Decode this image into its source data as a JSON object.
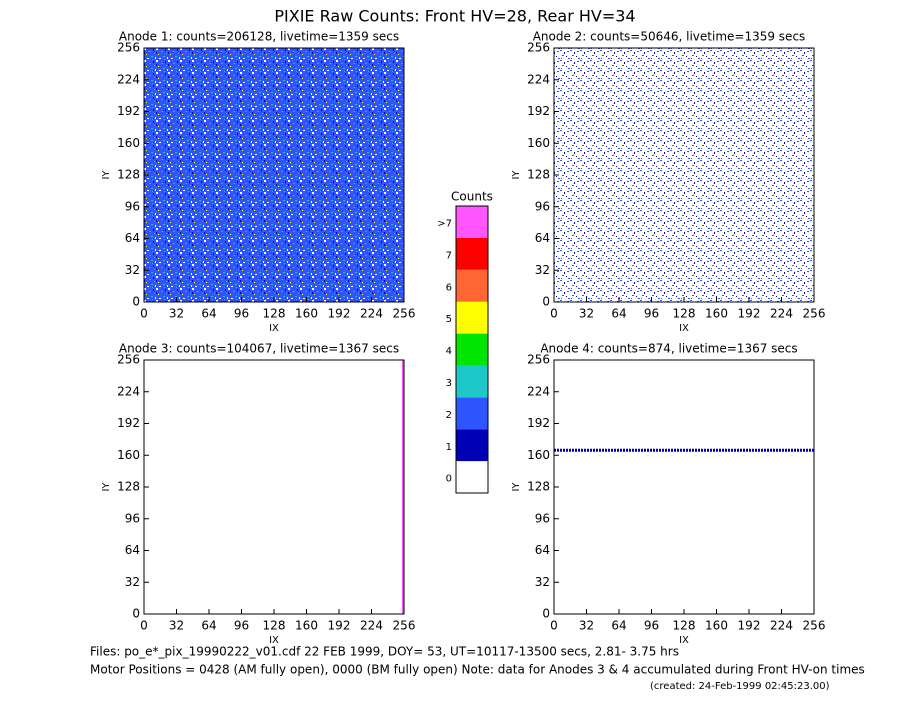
{
  "title": "PIXIE Raw Counts:  Front HV=28, Rear HV=34",
  "chart_data": [
    {
      "type": "heatmap",
      "title": "Anode 1: counts=206128, livetime=1359 secs",
      "xlabel": "IX",
      "ylabel": "IY",
      "xlim": [
        0,
        256
      ],
      "ylim": [
        0,
        256
      ],
      "xticks": [
        0,
        32,
        64,
        96,
        128,
        160,
        192,
        224,
        256
      ],
      "yticks": [
        0,
        32,
        64,
        96,
        128,
        160,
        192,
        224,
        256
      ],
      "texture": "dense"
    },
    {
      "type": "heatmap",
      "title": "Anode 2: counts=50646, livetime=1359 secs",
      "xlabel": "IX",
      "ylabel": "IY",
      "xlim": [
        0,
        256
      ],
      "ylim": [
        0,
        256
      ],
      "xticks": [
        0,
        32,
        64,
        96,
        128,
        160,
        192,
        224,
        256
      ],
      "yticks": [
        0,
        32,
        64,
        96,
        128,
        160,
        192,
        224,
        256
      ],
      "texture": "sparse"
    },
    {
      "type": "heatmap",
      "title": "Anode 3: counts=104067, livetime=1367 secs",
      "xlabel": "IX",
      "ylabel": "IY",
      "xlim": [
        0,
        256
      ],
      "ylim": [
        0,
        256
      ],
      "xticks": [
        0,
        32,
        64,
        96,
        128,
        160,
        192,
        224,
        256
      ],
      "yticks": [
        0,
        32,
        64,
        96,
        128,
        160,
        192,
        224,
        256
      ],
      "line_x": 255
    },
    {
      "type": "heatmap",
      "title": "Anode 4: counts=874, livetime=1367 secs",
      "xlabel": "IX",
      "ylabel": "IY",
      "xlim": [
        0,
        256
      ],
      "ylim": [
        0,
        256
      ],
      "xticks": [
        0,
        32,
        64,
        96,
        128,
        160,
        192,
        224,
        256
      ],
      "yticks": [
        0,
        32,
        64,
        96,
        128,
        160,
        192,
        224,
        256
      ],
      "line_y": 165
    }
  ],
  "colorbar": {
    "title": "Counts",
    "levels": [
      {
        "label": "0",
        "color": "#ffffff"
      },
      {
        "label": "1",
        "color": "#0000b4"
      },
      {
        "label": "2",
        "color": "#2f55ff"
      },
      {
        "label": "3",
        "color": "#1ec8c8"
      },
      {
        "label": "4",
        "color": "#00e600"
      },
      {
        "label": "5",
        "color": "#ffff00"
      },
      {
        "label": "6",
        "color": "#ff6633"
      },
      {
        "label": "7",
        "color": "#ff0000"
      },
      {
        "label": ">7",
        "color": "#ff55ff"
      }
    ]
  },
  "footer": [
    "Files: po_e*_pix_19990222_v01.cdf   22 FEB 1999, DOY= 53, UT=10117-13500 secs,  2.81- 3.75 hrs",
    "Motor Positions = 0428 (AM fully open), 0000 (BM fully open)    Note: data for Anodes 3 & 4 accumulated during Front HV-on times"
  ],
  "created": "(created: 24-Feb-1999 02:45:23.00)"
}
